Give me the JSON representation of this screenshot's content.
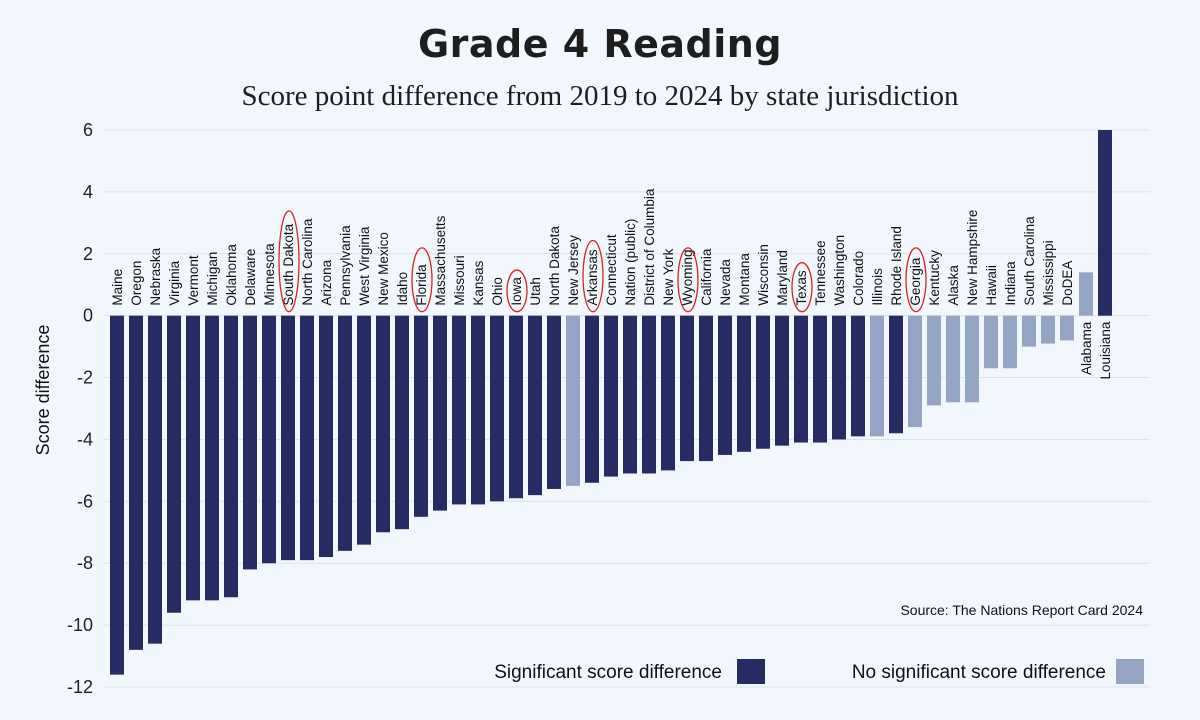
{
  "chart_data": {
    "type": "bar",
    "title": "Grade 4 Reading",
    "subtitle": "Score point difference from 2019 to 2024 by state jurisdiction",
    "xlabel": "",
    "ylabel": "Score difference",
    "ylim": [
      -12,
      6
    ],
    "yticks": [
      6,
      4,
      2,
      0,
      -2,
      -4,
      -6,
      -8,
      -10,
      -12
    ],
    "grid": true,
    "source": "Source: The Nations Report Card 2024",
    "legend": {
      "placement": "bottom-right",
      "entries": [
        {
          "label": "Significant score difference",
          "color": "#262b63",
          "key": "sig"
        },
        {
          "label": "No significant score difference",
          "color": "#94a4c3",
          "key": "nonsig"
        }
      ]
    },
    "circled": [
      "South Dakota",
      "Florida",
      "Iowa",
      "Arkansas",
      "Wyoming",
      "Texas",
      "Georgia"
    ],
    "bars": [
      {
        "label": "Maine",
        "value": -11.6,
        "sig": true
      },
      {
        "label": "Oregon",
        "value": -10.8,
        "sig": true
      },
      {
        "label": "Nebraska",
        "value": -10.6,
        "sig": true
      },
      {
        "label": "Virginia",
        "value": -9.6,
        "sig": true
      },
      {
        "label": "Vermont",
        "value": -9.2,
        "sig": true
      },
      {
        "label": "Michigan",
        "value": -9.2,
        "sig": true
      },
      {
        "label": "Oklahoma",
        "value": -9.1,
        "sig": true
      },
      {
        "label": "Delaware",
        "value": -8.2,
        "sig": true
      },
      {
        "label": "Minnesota",
        "value": -8.0,
        "sig": true
      },
      {
        "label": "South Dakota",
        "value": -7.9,
        "sig": true
      },
      {
        "label": "North Carolina",
        "value": -7.9,
        "sig": true
      },
      {
        "label": "Arizona",
        "value": -7.8,
        "sig": true
      },
      {
        "label": "Pennsylvania",
        "value": -7.6,
        "sig": true
      },
      {
        "label": "West Virginia",
        "value": -7.4,
        "sig": true
      },
      {
        "label": "New Mexico",
        "value": -7.0,
        "sig": true
      },
      {
        "label": "Idaho",
        "value": -6.9,
        "sig": true
      },
      {
        "label": "Florida",
        "value": -6.5,
        "sig": true
      },
      {
        "label": "Massachusetts",
        "value": -6.3,
        "sig": true
      },
      {
        "label": "Missouri",
        "value": -6.1,
        "sig": true
      },
      {
        "label": "Kansas",
        "value": -6.1,
        "sig": true
      },
      {
        "label": "Ohio",
        "value": -6.0,
        "sig": true
      },
      {
        "label": "Iowa",
        "value": -5.9,
        "sig": true
      },
      {
        "label": "Utah",
        "value": -5.8,
        "sig": true
      },
      {
        "label": "North Dakota",
        "value": -5.6,
        "sig": true
      },
      {
        "label": "New Jersey",
        "value": -5.5,
        "sig": false
      },
      {
        "label": "Arkansas",
        "value": -5.4,
        "sig": true
      },
      {
        "label": "Connecticut",
        "value": -5.2,
        "sig": true
      },
      {
        "label": "Nation (public)",
        "value": -5.1,
        "sig": true
      },
      {
        "label": "District of Columbia",
        "value": -5.1,
        "sig": true
      },
      {
        "label": "New York",
        "value": -5.0,
        "sig": true
      },
      {
        "label": "Wyoming",
        "value": -4.7,
        "sig": true
      },
      {
        "label": "California",
        "value": -4.7,
        "sig": true
      },
      {
        "label": "Nevada",
        "value": -4.5,
        "sig": true
      },
      {
        "label": "Montana",
        "value": -4.4,
        "sig": true
      },
      {
        "label": "Wisconsin",
        "value": -4.3,
        "sig": true
      },
      {
        "label": "Maryland",
        "value": -4.2,
        "sig": true
      },
      {
        "label": "Texas",
        "value": -4.1,
        "sig": true
      },
      {
        "label": "Tennessee",
        "value": -4.1,
        "sig": true
      },
      {
        "label": "Washington",
        "value": -4.0,
        "sig": true
      },
      {
        "label": "Colorado",
        "value": -3.9,
        "sig": true
      },
      {
        "label": "Illinois",
        "value": -3.9,
        "sig": false
      },
      {
        "label": "Rhode Island",
        "value": -3.8,
        "sig": true
      },
      {
        "label": "Georgia",
        "value": -3.6,
        "sig": false
      },
      {
        "label": "Kentucky",
        "value": -2.9,
        "sig": false
      },
      {
        "label": "Alaska",
        "value": -2.8,
        "sig": false
      },
      {
        "label": "New Hampshire",
        "value": -2.8,
        "sig": false
      },
      {
        "label": "Hawaii",
        "value": -1.7,
        "sig": false
      },
      {
        "label": "Indiana",
        "value": -1.7,
        "sig": false
      },
      {
        "label": "South Carolina",
        "value": -1.0,
        "sig": false
      },
      {
        "label": "Mississippi",
        "value": -0.9,
        "sig": false
      },
      {
        "label": "DoDEA",
        "value": -0.8,
        "sig": false
      },
      {
        "label": "Alabama",
        "value": 1.4,
        "sig": false
      },
      {
        "label": "Louisiana",
        "value": 6.0,
        "sig": true
      }
    ]
  }
}
